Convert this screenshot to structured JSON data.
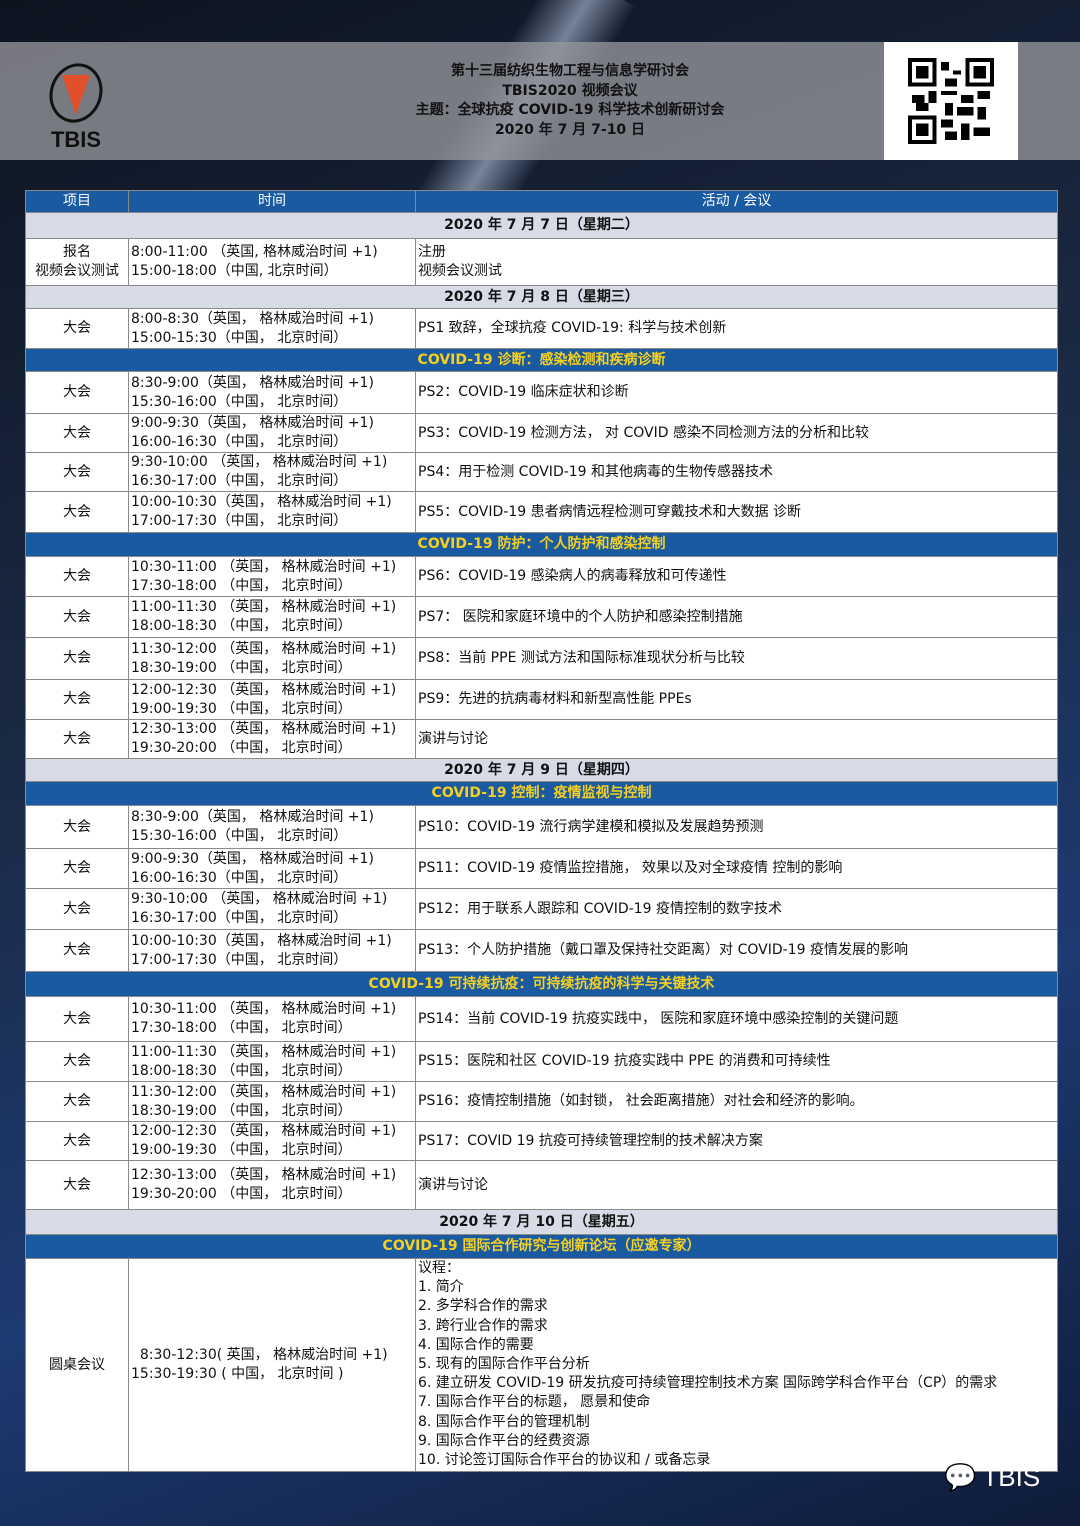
{
  "header": {
    "logo_text": "TBIS",
    "lines": [
      "第十三届纺织生物工程与信息学研讨会",
      "TBIS2020 视频会议",
      "主题：全球抗疫 COVID-19 科学技术创新研讨会",
      "2020 年 7 月 7-10 日"
    ],
    "qr": "qr-code"
  },
  "columns": [
    "项目",
    "时间",
    "活动 / 会议"
  ],
  "colors": {
    "header_blue": "#1a5aa0",
    "section_text": "#f5d020",
    "day_row": "#d6dbe6"
  },
  "rows": [
    {
      "type": "day",
      "text": "2020 年 7 月 7 日（星期二）"
    },
    {
      "type": "item",
      "item": "报名\n视频会议测试",
      "time": "8:00-11:00 （英国, 格林威治时间 +1)\n15:00-18:00（中国, 北京时间）",
      "act": "注册\n视频会议测试"
    },
    {
      "type": "day",
      "text": "2020 年 7 月 8 日（星期三）"
    },
    {
      "type": "item",
      "item": "大会",
      "time": "8:00-8:30（英国， 格林威治时间 +1)\n15:00-15:30（中国， 北京时间）",
      "act": "PS1 致辞，全球抗疫 COVID-19: 科学与技术创新"
    },
    {
      "type": "sec",
      "text": "COVID-19 诊断：感染检测和疾病诊断"
    },
    {
      "type": "item",
      "item": "大会",
      "time": "8:30-9:00（英国， 格林威治时间 +1)\n15:30-16:00（中国， 北京时间）",
      "act": "PS2：COVID-19 临床症状和诊断"
    },
    {
      "type": "item",
      "item": "大会",
      "time": "9:00-9:30（英国， 格林威治时间 +1)\n16:00-16:30（中国， 北京时间）",
      "act": "PS3：COVID-19 检测方法， 对 COVID 感染不同检测方法的分析和比较"
    },
    {
      "type": "item",
      "item": "大会",
      "time": "9:30-10:00 （英国， 格林威治时间 +1)\n16:30-17:00（中国， 北京时间）",
      "act": "PS4：用于检测 COVID-19 和其他病毒的生物传感器技术"
    },
    {
      "type": "item",
      "item": "大会",
      "time": "10:00-10:30（英国， 格林威治时间 +1)\n17:00-17:30（中国， 北京时间）",
      "act": "PS5：COVID-19 患者病情远程检测可穿戴技术和大数据 诊断"
    },
    {
      "type": "sec",
      "text": "COVID-19 防护：个人防护和感染控制"
    },
    {
      "type": "item",
      "item": "大会",
      "time": "10:30-11:00 （英国， 格林威治时间 +1)\n17:30-18:00 （中国， 北京时间）",
      "act": "PS6：COVID-19 感染病人的病毒释放和可传递性"
    },
    {
      "type": "item",
      "item": "大会",
      "time": "11:00-11:30 （英国， 格林威治时间 +1)\n18:00-18:30 （中国， 北京时间）",
      "act": "PS7： 医院和家庭环境中的个人防护和感染控制措施"
    },
    {
      "type": "item",
      "item": "大会",
      "time": "11:30-12:00 （英国， 格林威治时间 +1)\n18:30-19:00 （中国， 北京时间）",
      "act": "PS8：当前 PPE 测试方法和国际标准现状分析与比较"
    },
    {
      "type": "item",
      "item": "大会",
      "time": "12:00-12:30 （英国， 格林威治时间 +1)\n19:00-19:30 （中国， 北京时间）",
      "act": "PS9：先进的抗病毒材料和新型高性能 PPEs"
    },
    {
      "type": "item",
      "item": "大会",
      "time": "12:30-13:00 （英国， 格林威治时间 +1)\n19:30-20:00 （中国， 北京时间）",
      "act": "演讲与讨论"
    },
    {
      "type": "day",
      "text": "2020 年 7 月 9 日（星期四）"
    },
    {
      "type": "sec",
      "text": "COVID-19 控制：疫情监视与控制"
    },
    {
      "type": "item",
      "item": "大会",
      "time": "8:30-9:00（英国， 格林威治时间 +1)\n15:30-16:00（中国， 北京时间）",
      "act": "PS10：COVID-19 流行病学建模和模拟及发展趋势预测"
    },
    {
      "type": "item",
      "item": "大会",
      "time": "9:00-9:30（英国， 格林威治时间 +1)\n16:00-16:30（中国， 北京时间）",
      "act": "PS11：COVID-19 疫情监控措施， 效果以及对全球疫情 控制的影响"
    },
    {
      "type": "item",
      "item": "大会",
      "time": "9:30-10:00 （英国， 格林威治时间 +1)\n16:30-17:00（中国， 北京时间）",
      "act": "PS12：用于联系人跟踪和 COVID-19 疫情控制的数字技术"
    },
    {
      "type": "item",
      "item": "大会",
      "time": "10:00-10:30（英国， 格林威治时间 +1)\n17:00-17:30（中国， 北京时间）",
      "act": "PS13：个人防护措施（戴口罩及保持社交距离）对 COVID-19 疫情发展的影响"
    },
    {
      "type": "sec",
      "text": "COVID-19 可持续抗疫：可持续抗疫的科学与关键技术"
    },
    {
      "type": "item",
      "item": "大会",
      "time": "10:30-11:00 （英国， 格林威治时间 +1)\n17:30-18:00 （中国， 北京时间）",
      "act": "PS14：当前 COVID-19 抗疫实践中， 医院和家庭环境中感染控制的关键问题"
    },
    {
      "type": "item",
      "item": "大会",
      "time": "11:00-11:30 （英国， 格林威治时间 +1)\n18:00-18:30 （中国， 北京时间）",
      "act": "PS15：医院和社区 COVID-19 抗疫实践中 PPE 的消费和可持续性"
    },
    {
      "type": "item",
      "item": "大会",
      "time": "11:30-12:00 （英国， 格林威治时间 +1)\n18:30-19:00 （中国， 北京时间）",
      "act": "PS16：疫情控制措施（如封锁， 社会距离措施）对社会和经济的影响。"
    },
    {
      "type": "item",
      "item": "大会",
      "time": "12:00-12:30 （英国， 格林威治时间 +1)\n19:00-19:30 （中国， 北京时间）",
      "act": "PS17：COVID 19 抗疫可持续管理控制的技术解决方案"
    },
    {
      "type": "item",
      "item": "大会",
      "time": "12:30-13:00 （英国， 格林威治时间 +1)\n19:30-20:00 （中国， 北京时间）",
      "act": "演讲与讨论"
    },
    {
      "type": "day",
      "text": "2020 年 7 月 10 日（星期五）"
    },
    {
      "type": "sec",
      "text": "COVID-19 国际合作研究与创新论坛（应邀专家）"
    },
    {
      "type": "item",
      "item": "圆桌会议",
      "time": "  8:30-12:30( 英国， 格林威治时间 +1)\n15:30-19:30 ( 中国， 北京时间 )",
      "act": "议程：\n1. 简介\n2. 多学科合作的需求\n3. 跨行业合作的需求\n4. 国际合作的需要\n5. 现有的国际合作平台分析\n6. 建立研发 COVID-19 研发抗疫可持续管理控制技术方案 国际跨学科合作平台（CP）的需求\n7. 国际合作平台的标题， 愿景和使命\n8. 国际合作平台的管理机制\n9. 国际合作平台的经费资源\n10. 讨论签订国际合作平台的协议和 / 或备忘录"
    }
  ],
  "watermark": "TBIS"
}
